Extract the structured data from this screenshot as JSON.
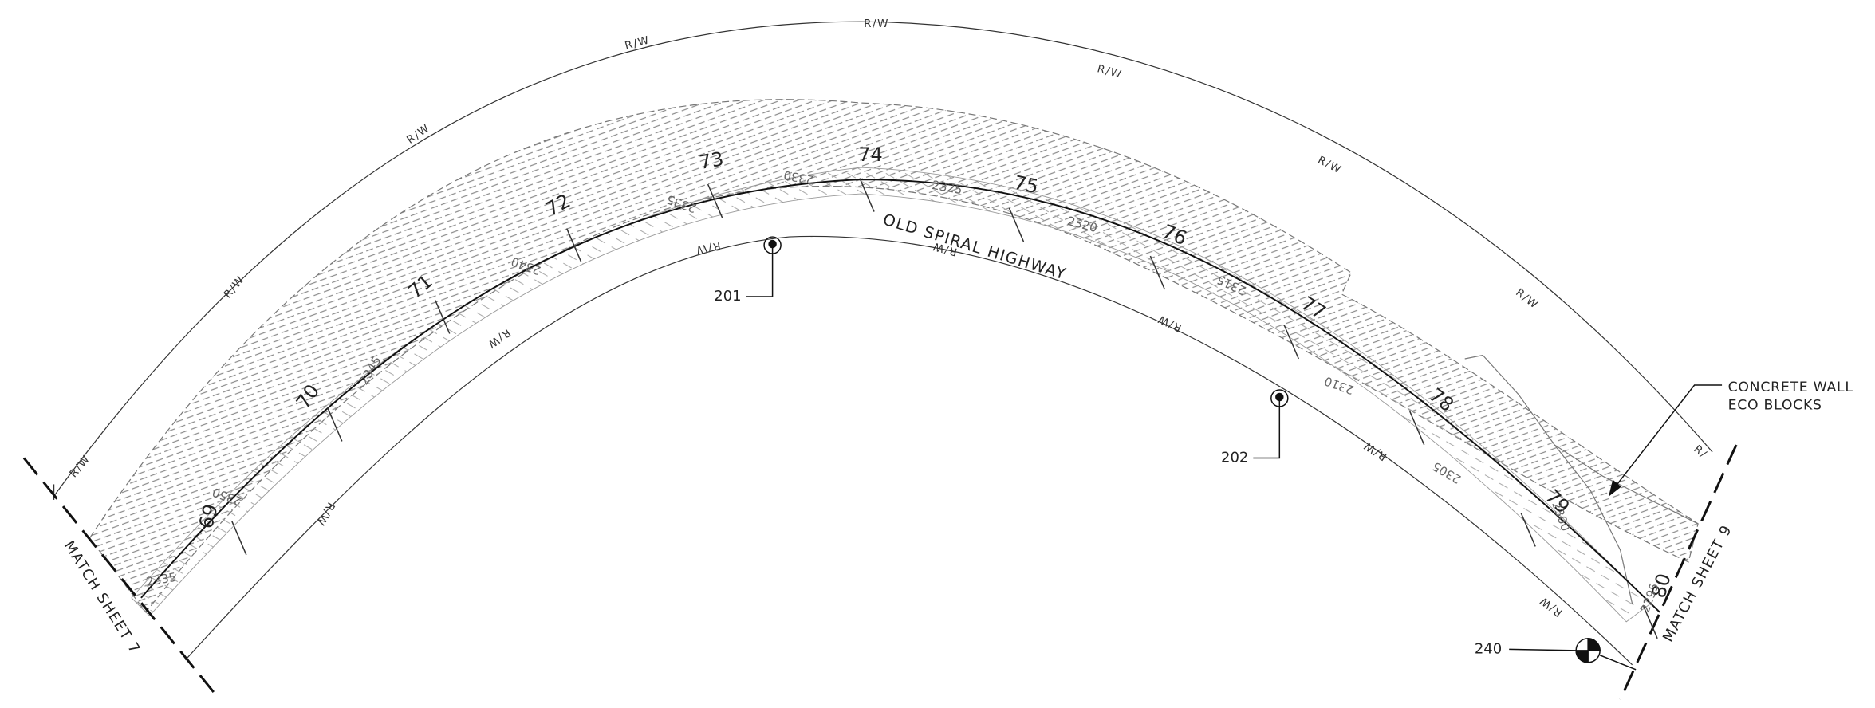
{
  "row_labels": [
    "R/W",
    "R/W",
    "R/W",
    "R/W",
    "R/W",
    "R/W",
    "R/W",
    "R/W",
    "R/",
    "R/W",
    "R/W",
    "R/W",
    "R/W",
    "R/W",
    "R/W",
    "R/W"
  ],
  "stations": [
    "69",
    "70",
    "71",
    "72",
    "73",
    "74",
    "75",
    "76",
    "77",
    "78",
    "79",
    "80"
  ],
  "contour_labels": [
    "2335",
    "2350",
    "2345",
    "2340",
    "2335",
    "2330",
    "2325",
    "2320",
    "2315",
    "2310",
    "2305",
    "2300",
    "2295"
  ],
  "road_name": "OLD SPIRAL HIGHWAY",
  "callouts": [
    "201",
    "202",
    "240"
  ],
  "note": [
    "CONCRETE WALL",
    "ECO BLOCKS"
  ],
  "match_lines": [
    "MATCH SHEET 7",
    "MATCH SHEET 9"
  ]
}
